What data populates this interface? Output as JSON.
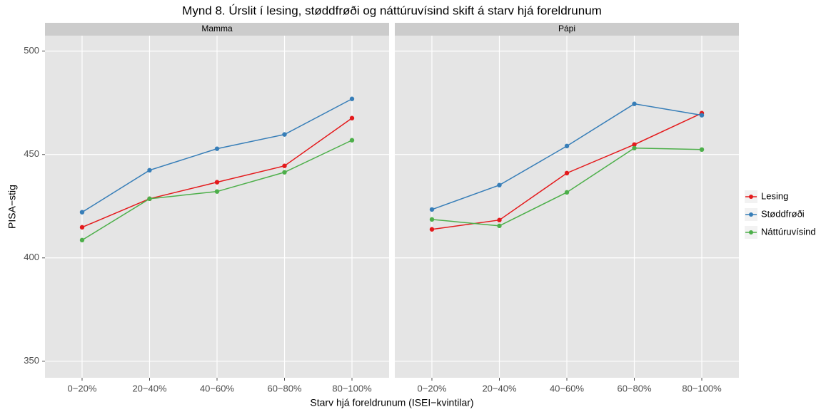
{
  "title": "Mynd 8. Úrslit í lesing, støddfrøði og náttúruvísind skift á starv hjá foreldrunum",
  "x_label": "Starv hjá foreldrunum (ISEI−kvintilar)",
  "y_label": "PISA−stig",
  "chart_data": [
    {
      "type": "line",
      "facet": "Mamma",
      "categories": [
        "0−20%",
        "20−40%",
        "40−60%",
        "60−80%",
        "80−100%"
      ],
      "series": [
        {
          "name": "Lesing",
          "color": "#e41a1c",
          "values": [
            414.8,
            428.6,
            436.6,
            444.5,
            467.6
          ]
        },
        {
          "name": "Støddfrøði",
          "color": "#377eb8",
          "values": [
            422.1,
            442.4,
            452.8,
            459.7,
            476.9
          ]
        },
        {
          "name": "Náttúruvísind",
          "color": "#4daf4a",
          "values": [
            408.6,
            428.6,
            432.1,
            441.4,
            456.9
          ]
        }
      ],
      "ylim": [
        342,
        507.5
      ],
      "yticks": [
        350,
        400,
        450,
        500
      ],
      "grid": true
    },
    {
      "type": "line",
      "facet": "Pápi",
      "categories": [
        "0−20%",
        "20−40%",
        "40−60%",
        "60−80%",
        "80−100%"
      ],
      "series": [
        {
          "name": "Lesing",
          "color": "#e41a1c",
          "values": [
            413.8,
            418.3,
            441.0,
            454.8,
            470.0
          ]
        },
        {
          "name": "Støddfrøði",
          "color": "#377eb8",
          "values": [
            423.4,
            435.2,
            454.1,
            474.5,
            469.0
          ]
        },
        {
          "name": "Náttúruvísind",
          "color": "#4daf4a",
          "values": [
            418.6,
            415.5,
            431.7,
            453.1,
            452.4
          ]
        }
      ],
      "ylim": [
        342,
        507.5
      ],
      "yticks": [
        350,
        400,
        450,
        500
      ],
      "grid": true
    }
  ]
}
